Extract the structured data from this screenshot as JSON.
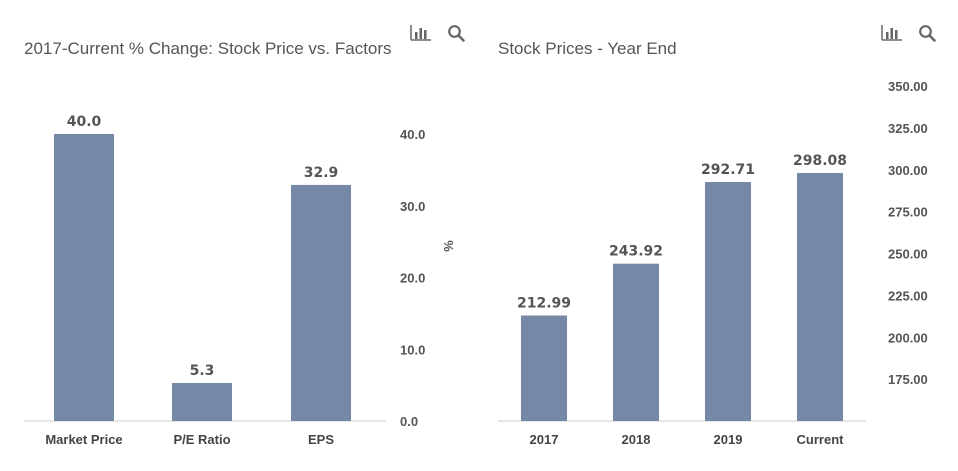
{
  "colors": {
    "bar": "#7589a6",
    "axis": "#cccccc",
    "icon": "#666666"
  },
  "icons": [
    "bar-chart-icon",
    "search-icon"
  ],
  "chart_data": [
    {
      "type": "bar",
      "title": "2017-Current % Change: Stock Price vs. Factors",
      "categories": [
        "Market Price",
        "P/E Ratio",
        "EPS"
      ],
      "values": [
        40.0,
        5.3,
        32.9
      ],
      "data_labels": [
        "40.0",
        "5.3",
        "32.9"
      ],
      "ylabel": "%",
      "ylim": [
        0,
        40
      ],
      "yticks": [
        0,
        10,
        20,
        30,
        40
      ],
      "ytick_labels": [
        "0.0",
        "10.0",
        "20.0",
        "30.0",
        "40.0"
      ],
      "y_axis_side": "right",
      "grid": false,
      "legend": "none"
    },
    {
      "type": "bar",
      "title": "Stock Prices - Year End",
      "categories": [
        "2017",
        "2018",
        "2019",
        "Current"
      ],
      "values": [
        212.99,
        243.92,
        292.71,
        298.08
      ],
      "data_labels": [
        "212.99",
        "243.92",
        "292.71",
        "298.08"
      ],
      "ylim": [
        150,
        350
      ],
      "yticks": [
        175,
        200,
        225,
        250,
        275,
        300,
        325,
        350
      ],
      "ytick_labels": [
        "175.00",
        "200.00",
        "225.00",
        "250.00",
        "275.00",
        "300.00",
        "325.00",
        "350.00"
      ],
      "y_axis_side": "right",
      "grid": false,
      "legend": "none"
    }
  ]
}
